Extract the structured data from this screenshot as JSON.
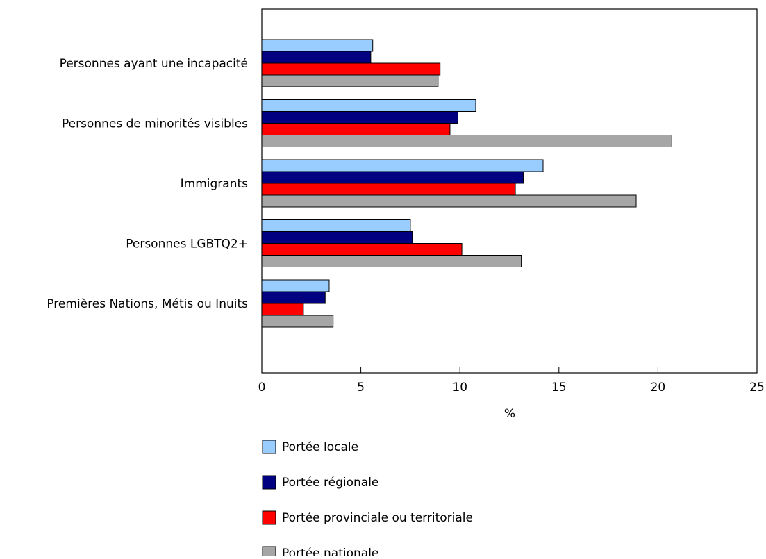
{
  "chart_data": {
    "type": "bar",
    "orientation": "horizontal",
    "categories": [
      "Personnes ayant une incapacité",
      "Personnes de minorités visibles",
      "Immigrants",
      "Personnes LGBTQ2+",
      "Premières Nations, Métis ou Inuits"
    ],
    "series": [
      {
        "name": "Portée locale",
        "color": "#99CCFF",
        "values": [
          5.6,
          10.8,
          14.2,
          7.5,
          3.4
        ]
      },
      {
        "name": "Portée régionale",
        "color": "#000080",
        "values": [
          5.5,
          9.9,
          13.2,
          7.6,
          3.2
        ]
      },
      {
        "name": "Portée provinciale ou territoriale",
        "color": "#FF0000",
        "values": [
          9.0,
          9.5,
          12.8,
          10.1,
          2.1
        ]
      },
      {
        "name": "Portée nationale",
        "color": "#A6A6A6",
        "values": [
          8.9,
          20.7,
          18.9,
          13.1,
          3.6
        ]
      }
    ],
    "title": "",
    "xlabel": "%",
    "ylabel": "",
    "xlim": [
      0,
      25
    ],
    "xticks": [
      "0",
      "5",
      "10",
      "15",
      "20",
      "25"
    ],
    "grid": false,
    "legend_position": "bottom"
  }
}
